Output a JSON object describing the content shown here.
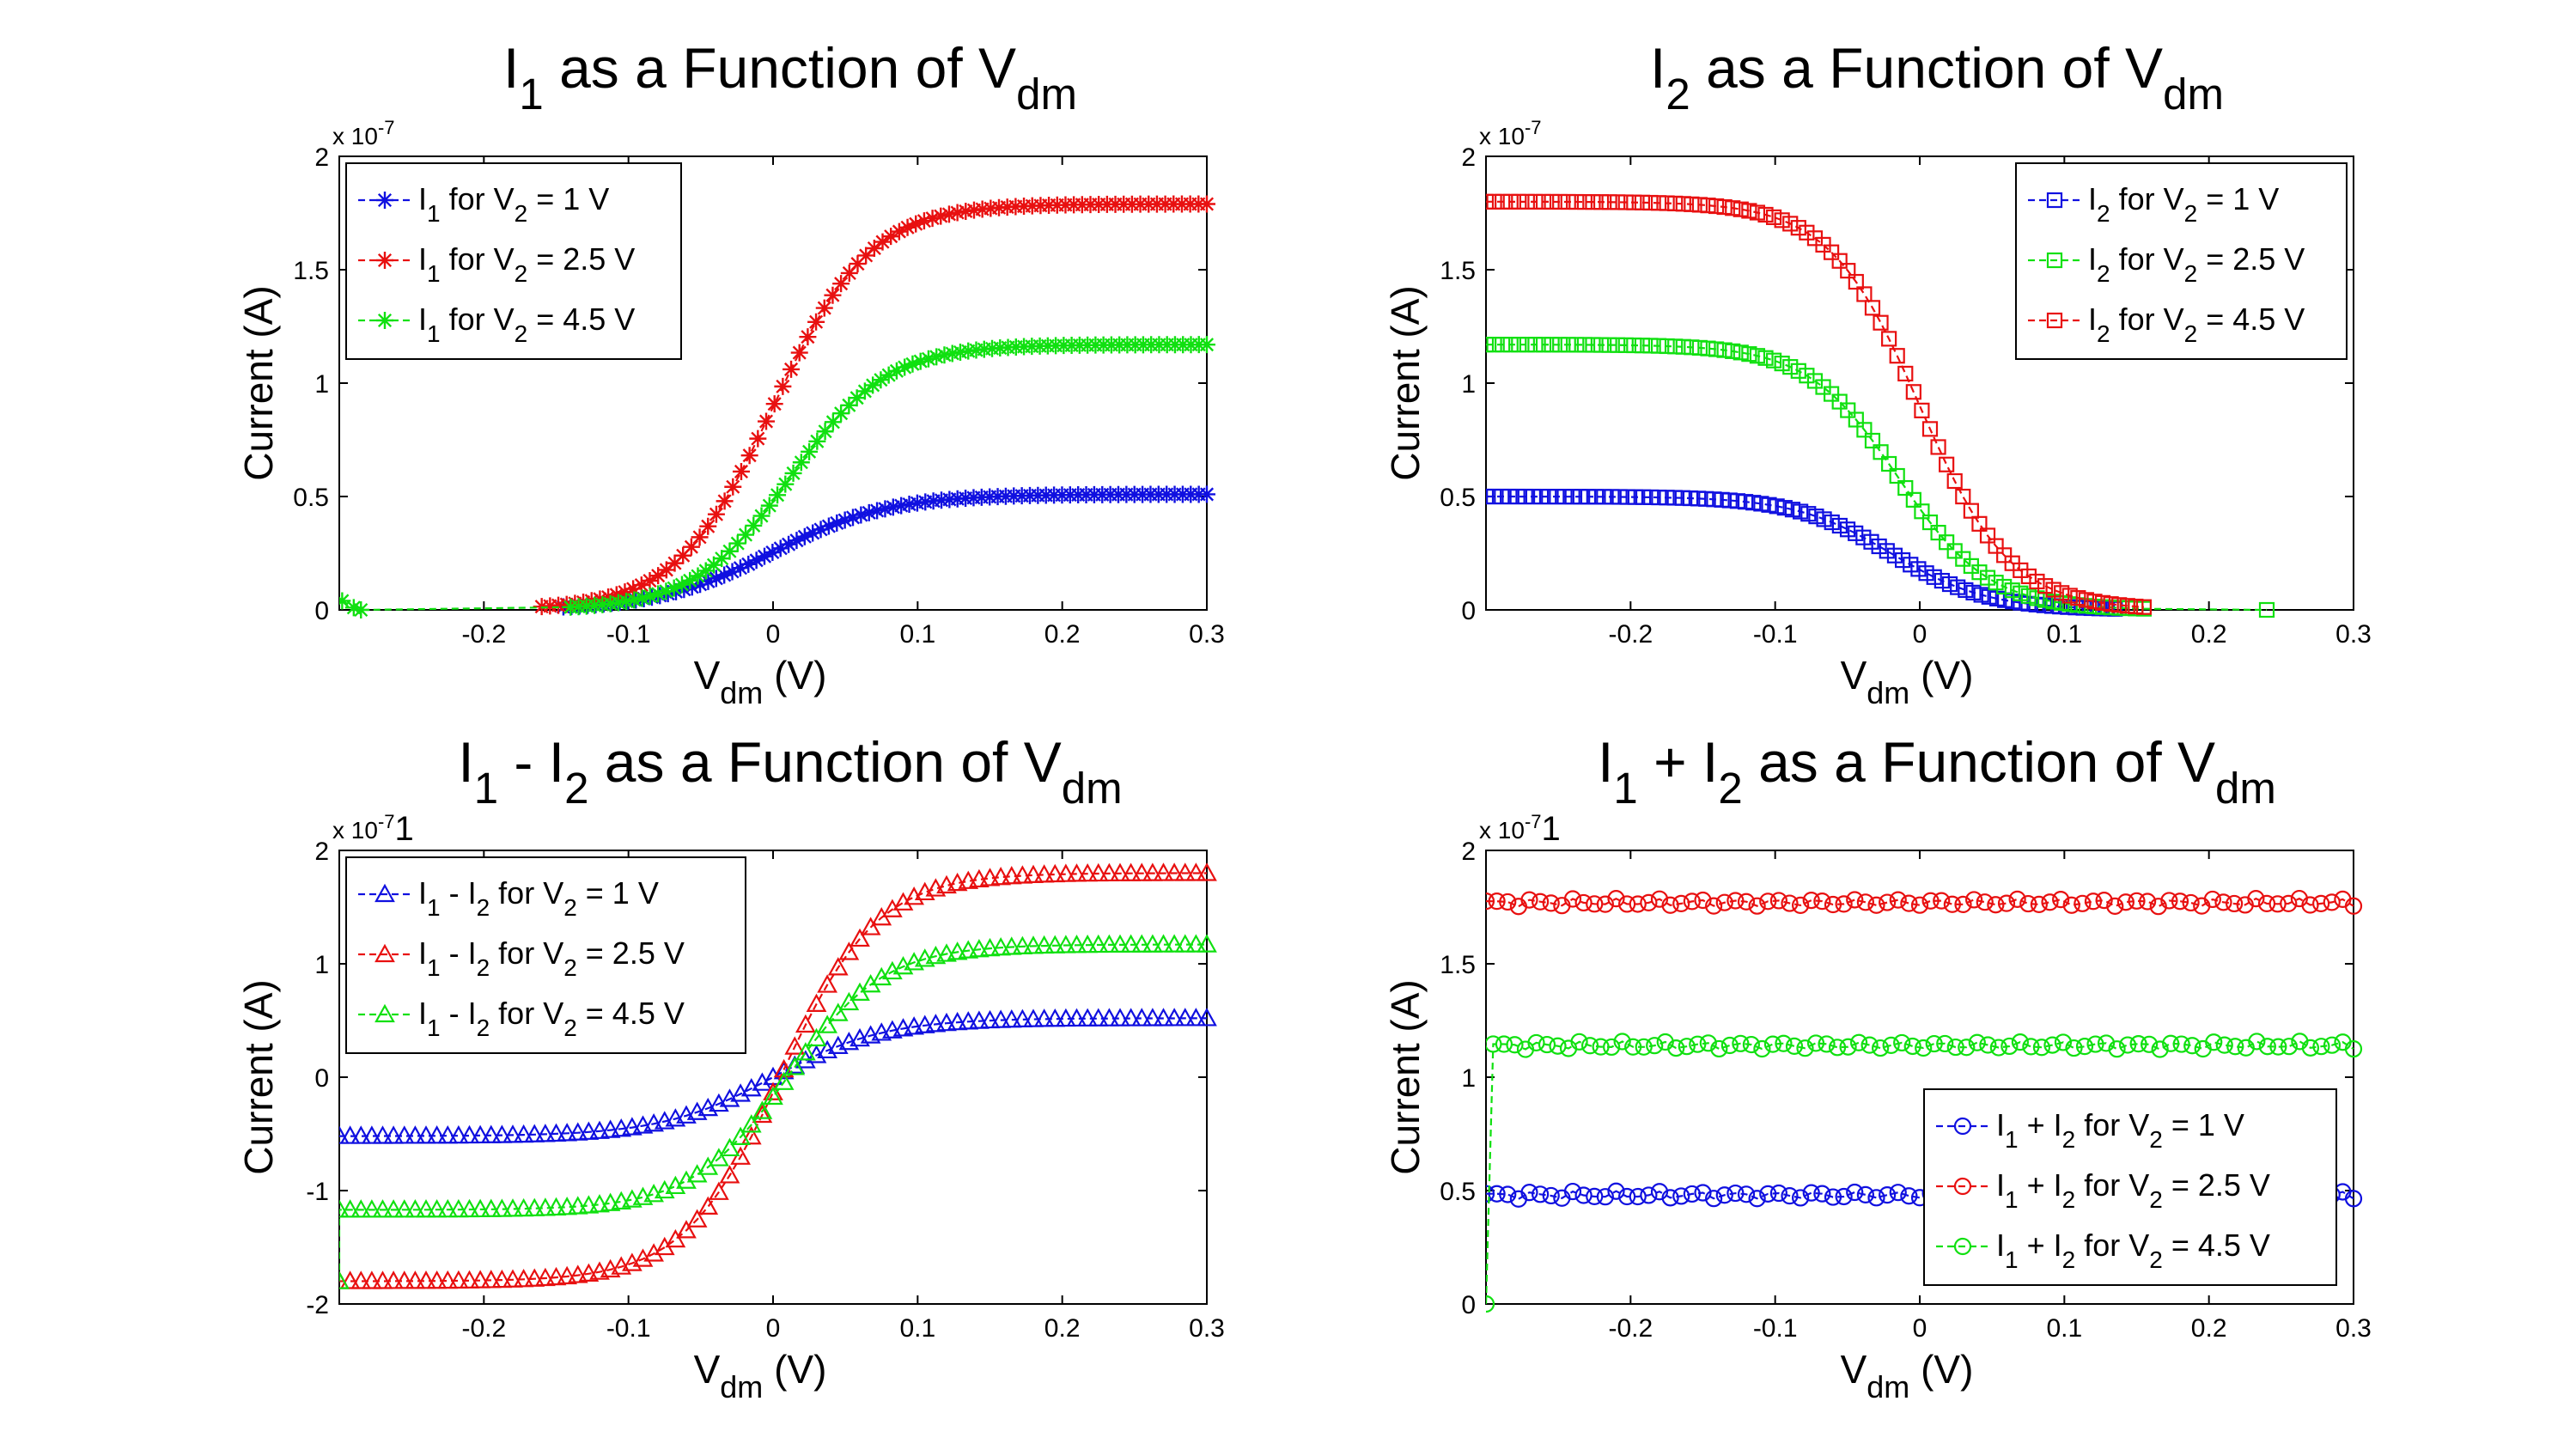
{
  "figure_colors": {
    "blue": "#1010e0",
    "red": "#e81010",
    "green": "#10e010"
  },
  "chart_data": [
    {
      "type": "line",
      "title": {
        "base": "I",
        "sub": "1",
        "rest": " as a Function of V",
        "sub2": "dm"
      },
      "xlabel": {
        "base": "V",
        "sub": "dm",
        "rest": " (V)"
      },
      "ylabel": "Current (A)",
      "exponent": "x 10",
      "exponent_power": "-7",
      "xlim": [
        -0.3,
        0.3
      ],
      "ylim": [
        0,
        2
      ],
      "xticks": [
        -0.2,
        -0.1,
        0,
        0.1,
        0.2,
        0.3
      ],
      "xtick_labels": [
        "-0.2",
        "-0.1",
        "0",
        "0.1",
        "0.2",
        "0.3"
      ],
      "yticks": [
        0,
        0.5,
        1,
        1.5,
        2
      ],
      "ytick_labels": [
        "0",
        "0.5",
        "1",
        "1.5",
        "2"
      ],
      "legend_position": "top-left",
      "marker": "star",
      "series": [
        {
          "name": {
            "a": "I",
            "asub": "1",
            "mid": " for V",
            "bsub": "2",
            "end": " = 1 V"
          },
          "color": "#1010e0",
          "amp": 0.51,
          "x0": 0.0,
          "k": 25,
          "xmin": -0.145,
          "xmax": 0.3,
          "extra": []
        },
        {
          "name": {
            "a": "I",
            "asub": "1",
            "mid": " for V",
            "bsub": "2",
            "end": " = 2.5 V"
          },
          "color": "#e81010",
          "amp": 1.79,
          "x0": 0.0,
          "k": 30,
          "xmin": -0.16,
          "xmax": 0.3,
          "extra": []
        },
        {
          "name": {
            "a": "I",
            "asub": "1",
            "mid": " for V",
            "bsub": "2",
            "end": " = 4.5 V"
          },
          "color": "#10e010",
          "amp": 1.17,
          "x0": 0.012,
          "k": 30,
          "xmin": -0.14,
          "xmax": 0.3,
          "extra": [
            [
              -0.298,
              0.04
            ],
            [
              -0.29,
              0.01
            ],
            [
              -0.285,
              0.0
            ]
          ]
        }
      ]
    },
    {
      "type": "line",
      "title": {
        "base": "I",
        "sub": "2",
        "rest": " as a Function of V",
        "sub2": "dm"
      },
      "xlabel": {
        "base": "V",
        "sub": "dm",
        "rest": " (V)"
      },
      "ylabel": "Current (A)",
      "exponent": "x 10",
      "exponent_power": "-7",
      "xlim": [
        -0.3,
        0.3
      ],
      "ylim": [
        0,
        2
      ],
      "xticks": [
        -0.2,
        -0.1,
        0,
        0.1,
        0.2,
        0.3
      ],
      "xtick_labels": [
        "-0.2",
        "-0.1",
        "0",
        "0.1",
        "0.2",
        "0.3"
      ],
      "yticks": [
        0,
        0.5,
        1,
        1.5,
        2
      ],
      "ytick_labels": [
        "0",
        "0.5",
        "1",
        "1.5",
        "2"
      ],
      "legend_position": "top-right",
      "marker": "square",
      "series": [
        {
          "name": {
            "a": "I",
            "asub": "2",
            "mid": " for V",
            "bsub": "2",
            "end": " = 1 V"
          },
          "color": "#1010e0",
          "amp": 0.5,
          "x0": -0.02,
          "k": -30,
          "xmin": -0.3,
          "xmax": 0.135,
          "extra": []
        },
        {
          "name": {
            "a": "I",
            "asub": "2",
            "mid": " for V",
            "bsub": "2",
            "end": " = 2.5 V"
          },
          "color": "#10e010",
          "amp": 1.17,
          "x0": -0.015,
          "k": -32,
          "xmin": -0.3,
          "xmax": 0.155,
          "extra": [
            [
              0.24,
              0.0
            ]
          ]
        },
        {
          "name": {
            "a": "I",
            "asub": "2",
            "mid": " for V",
            "bsub": "2",
            "end": " = 4.5 V"
          },
          "color": "#e81010",
          "amp": 1.8,
          "x0": 0.0,
          "k": -32,
          "xmin": -0.3,
          "xmax": 0.155,
          "extra": []
        }
      ]
    },
    {
      "type": "line",
      "title": {
        "base": "I",
        "sub": "1",
        "rest": " - I",
        "sub2": "2",
        "rest2": " as a Function of V",
        "sub3": "dm"
      },
      "xlabel": {
        "base": "V",
        "sub": "dm",
        "rest": " (V)"
      },
      "ylabel": "Current (A)",
      "exponent": "x 10",
      "exponent_power": "-7",
      "exponent_overlap": "1",
      "xlim": [
        -0.3,
        0.3
      ],
      "ylim": [
        -2,
        2
      ],
      "xticks": [
        -0.2,
        -0.1,
        0,
        0.1,
        0.2,
        0.3
      ],
      "xtick_labels": [
        "-0.2",
        "-0.1",
        "0",
        "0.1",
        "0.2",
        "0.3"
      ],
      "yticks": [
        -2,
        -1,
        0,
        1,
        2
      ],
      "ytick_labels": [
        "-2",
        "-1",
        "0",
        "1",
        "2"
      ],
      "legend_position": "top-left",
      "marker": "triangle",
      "series": [
        {
          "name": {
            "a": "I",
            "asub": "1",
            "mid": " - I",
            "msub": "2",
            "mid2": " for V",
            "bsub": "2",
            "end": " = 1 V"
          },
          "color": "#1010e0",
          "amp": 0.52,
          "x0": 0.0,
          "k": 26,
          "xmin": -0.3,
          "xmax": 0.3,
          "extra": []
        },
        {
          "name": {
            "a": "I",
            "asub": "1",
            "mid": " - I",
            "msub": "2",
            "mid2": " for V",
            "bsub": "2",
            "end": " = 2.5 V"
          },
          "color": "#e81010",
          "amp": 1.8,
          "x0": 0.005,
          "k": 30,
          "xmin": -0.3,
          "xmax": 0.3,
          "extra": []
        },
        {
          "name": {
            "a": "I",
            "asub": "1",
            "mid": " - I",
            "msub": "2",
            "mid2": " for V",
            "bsub": "2",
            "end": " = 4.5 V"
          },
          "color": "#10e010",
          "amp": 1.17,
          "x0": 0.01,
          "k": 30,
          "xmin": -0.3,
          "xmax": 0.3,
          "extra": [
            [
              -0.3,
              -1.8
            ]
          ]
        }
      ]
    },
    {
      "type": "line",
      "title": {
        "base": "I",
        "sub": "1",
        "rest": " + I",
        "sub2": "2",
        "rest2": " as a Function of V",
        "sub3": "dm"
      },
      "xlabel": {
        "base": "V",
        "sub": "dm",
        "rest": " (V)"
      },
      "ylabel": "Current (A)",
      "exponent": "x 10",
      "exponent_power": "-7",
      "exponent_overlap": "1",
      "xlim": [
        -0.3,
        0.3
      ],
      "ylim": [
        0,
        2
      ],
      "xticks": [
        -0.2,
        -0.1,
        0,
        0.1,
        0.2,
        0.3
      ],
      "xtick_labels": [
        "-0.2",
        "-0.1",
        "0",
        "0.1",
        "0.2",
        "0.3"
      ],
      "yticks": [
        0,
        0.5,
        1,
        1.5,
        2
      ],
      "ytick_labels": [
        "0",
        "0.5",
        "1",
        "1.5",
        "2"
      ],
      "legend_position": "bottom-right",
      "marker": "circle",
      "series": [
        {
          "name": {
            "a": "I",
            "asub": "1",
            "mid": " + I",
            "msub": "2",
            "mid2": " for V",
            "bsub": "2",
            "end": " = 1 V"
          },
          "color": "#1010e0",
          "flat": 0.48,
          "xmin": -0.3,
          "xmax": 0.3,
          "extra": []
        },
        {
          "name": {
            "a": "I",
            "asub": "1",
            "mid": " + I",
            "msub": "2",
            "mid2": " for V",
            "bsub": "2",
            "end": " = 2.5 V"
          },
          "color": "#e81010",
          "flat": 1.77,
          "xmin": -0.3,
          "xmax": 0.3,
          "extra": []
        },
        {
          "name": {
            "a": "I",
            "asub": "1",
            "mid": " + I",
            "msub": "2",
            "mid2": " for V",
            "bsub": "2",
            "end": " = 4.5 V"
          },
          "color": "#10e010",
          "flat": 1.14,
          "xmin": -0.295,
          "xmax": 0.3,
          "extra": [
            [
              -0.3,
              0.0
            ]
          ]
        }
      ]
    }
  ]
}
